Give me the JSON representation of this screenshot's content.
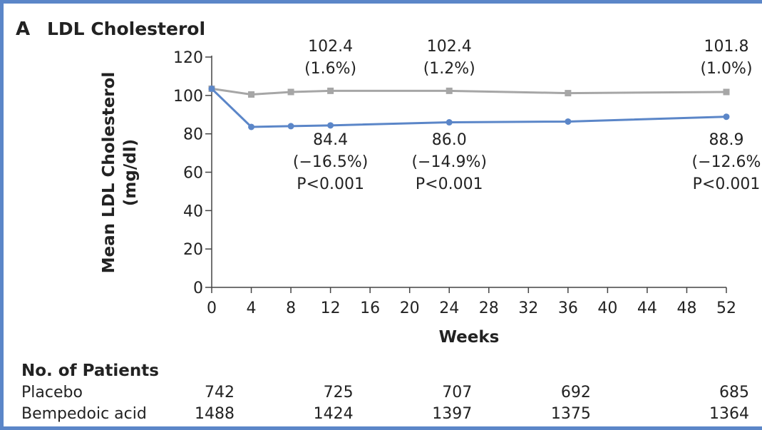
{
  "chart_data": {
    "type": "line",
    "panel_label": "A",
    "title": "LDL Cholesterol",
    "xlabel": "Weeks",
    "ylabel": "Mean LDL Cholesterol (mg/dl)",
    "xlim": [
      0,
      52
    ],
    "ylim": [
      0,
      120
    ],
    "x_ticks": [
      0,
      4,
      8,
      12,
      16,
      20,
      24,
      28,
      32,
      36,
      40,
      44,
      48,
      52
    ],
    "y_ticks": [
      0,
      20,
      40,
      60,
      80,
      100,
      120
    ],
    "grid": false,
    "series": [
      {
        "key": "placebo",
        "color": "#a6a6a6",
        "marker": "square",
        "x": [
          0,
          4,
          8,
          12,
          24,
          36,
          52
        ],
        "values": [
          103.5,
          100.5,
          101.8,
          102.4,
          102.4,
          101.2,
          101.8
        ]
      },
      {
        "key": "bempedoic",
        "color": "#5b86c8",
        "marker": "circle",
        "x": [
          0,
          4,
          8,
          12,
          24,
          36,
          52
        ],
        "values": [
          103.5,
          83.6,
          84.0,
          84.4,
          86.0,
          86.4,
          88.9
        ]
      }
    ],
    "annotations": {
      "placebo": [
        {
          "x": 12,
          "lines": [
            "102.4",
            "(1.6%)"
          ]
        },
        {
          "x": 24,
          "lines": [
            "102.4",
            "(1.2%)"
          ]
        },
        {
          "x": 52,
          "lines": [
            "101.8",
            "(1.0%)"
          ]
        }
      ],
      "bempedoic": [
        {
          "x": 12,
          "lines": [
            "84.4",
            "(−16.5%)",
            "P<0.001"
          ]
        },
        {
          "x": 24,
          "lines": [
            "86.0",
            "(−14.9%)",
            "P<0.001"
          ]
        },
        {
          "x": 52,
          "lines": [
            "88.9",
            "(−12.6%",
            "P<0.001"
          ]
        }
      ]
    },
    "patients": {
      "heading": "No. of Patients",
      "weeks": [
        0,
        12,
        24,
        36,
        52
      ],
      "rows": [
        {
          "label": "Placebo",
          "values": [
            "742",
            "725",
            "707",
            "692",
            "685"
          ]
        },
        {
          "label": "Bempedoic acid",
          "values": [
            "1488",
            "1424",
            "1397",
            "1375",
            "1364"
          ]
        }
      ]
    }
  }
}
